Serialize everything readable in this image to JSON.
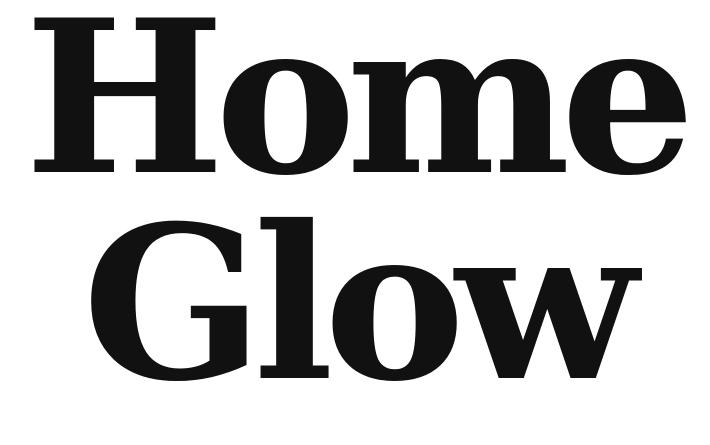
{
  "logo": {
    "line1": "Home",
    "line2": "Glow"
  },
  "colors": {
    "text": "#111111",
    "background": "#ffffff"
  }
}
